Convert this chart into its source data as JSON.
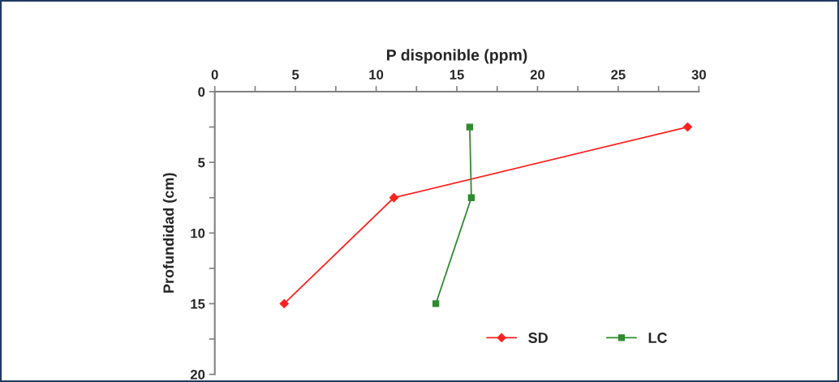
{
  "chart_data": {
    "type": "line",
    "xlabel": "P disponible (ppm)",
    "ylabel": "Profundidad (cm)",
    "series": [
      {
        "name": "SD",
        "color": "#ff2020",
        "marker": "diamond",
        "x": [
          29.3,
          11.1,
          4.3
        ],
        "values": [
          2.5,
          7.5,
          15
        ]
      },
      {
        "name": "LC",
        "color": "#2e8b2e",
        "marker": "square",
        "x": [
          15.8,
          15.9,
          13.7
        ],
        "values": [
          2.5,
          7.5,
          15
        ]
      }
    ],
    "xlim": [
      0,
      30
    ],
    "xticks": [
      0,
      {
        "value": 2.5,
        "label": null
      },
      5,
      {
        "value": 7.5,
        "label": null
      },
      10,
      {
        "value": 12.5,
        "label": null
      },
      15,
      {
        "value": 17.5,
        "label": null
      },
      20,
      {
        "value": 22.5,
        "label": null
      },
      25,
      {
        "value": 27.5,
        "label": null
      },
      30
    ],
    "ylim": [
      20,
      0
    ],
    "yticks": [
      0,
      {
        "value": 2.5,
        "label": null
      },
      5,
      {
        "value": 7.5,
        "label": null
      },
      10,
      {
        "value": 12.5,
        "label": null
      },
      15,
      {
        "value": 17.5,
        "label": null
      },
      20
    ],
    "grid": false,
    "legend": "bottom right",
    "line_style": "solid"
  }
}
